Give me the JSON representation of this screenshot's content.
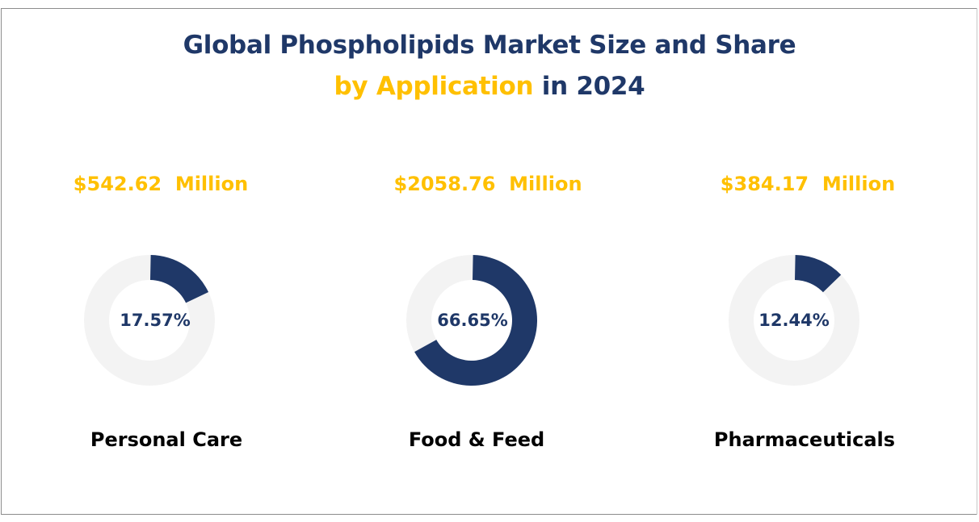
{
  "chart_data": {
    "type": "pie",
    "variant": "donut",
    "title_line1": "Global Phospholipids Market Size and Share",
    "title_line2_accent": "by Application",
    "title_line2_rest": " in 2024",
    "items": [
      {
        "category": "Personal Care",
        "value_label": "$542.62  Million",
        "value": 542.62,
        "share": 17.57,
        "share_label": "17.57%"
      },
      {
        "category": "Food & Feed",
        "value_label": "$2058.76  Million",
        "value": 2058.76,
        "share": 66.65,
        "share_label": "66.65%"
      },
      {
        "category": "Pharmaceuticals",
        "value_label": "$384.17  Million",
        "value": 384.17,
        "share": 12.44,
        "share_label": "12.44%"
      }
    ],
    "colors": {
      "filled": "#1f3868",
      "remainder": "#f3f3f3",
      "title": "#1f3868",
      "accent": "#ffc000"
    }
  }
}
